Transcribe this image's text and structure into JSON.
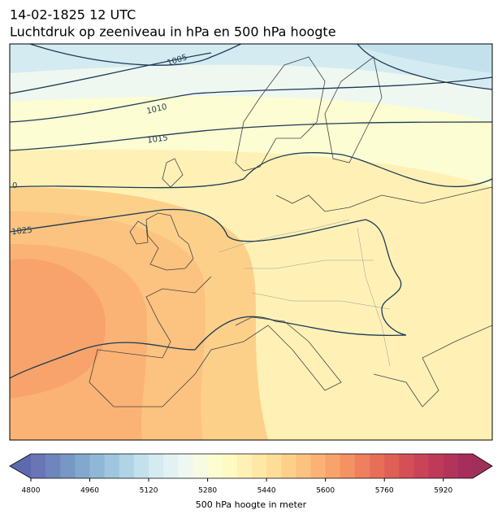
{
  "header": {
    "title": "14-02-1825 12 UTC",
    "subtitle": "Luchtdruk op zeeniveau in hPa en 500 hPa hoogte"
  },
  "contour_labels": [
    "1005",
    "1010",
    "1015",
    "0",
    "1025"
  ],
  "colorbar": {
    "label": "500 hPa hoogte in meter",
    "range": [
      4800,
      6000
    ],
    "ticks": [
      4800,
      4960,
      5120,
      5280,
      5440,
      5600,
      5760,
      5920
    ],
    "colors": [
      "#6a75b6",
      "#6f86bd",
      "#7797c5",
      "#82a8cd",
      "#8fb8d6",
      "#9fc6de",
      "#b0d4e6",
      "#c2e1ec",
      "#d3ebf1",
      "#e2f2f3",
      "#eef8f0",
      "#f6fbe2",
      "#fcfdd3",
      "#fff9c4",
      "#fff1b5",
      "#ffe8a6",
      "#fedd98",
      "#fdd08a",
      "#fcc27f",
      "#fab375",
      "#f7a36b",
      "#f39263",
      "#ee805d",
      "#e76f58",
      "#df5f56",
      "#d55056",
      "#ca4457",
      "#be3a58",
      "#b2345a",
      "#a52e5b"
    ],
    "extend_colors": [
      "#5e6ab0",
      "#a0305a"
    ]
  }
}
